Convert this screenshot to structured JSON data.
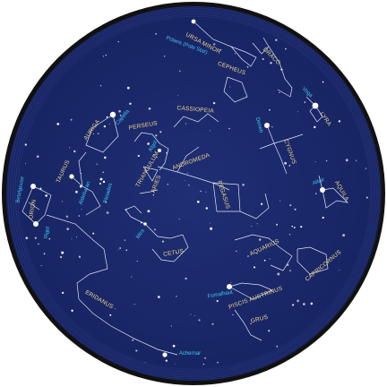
{
  "map": {
    "colors": {
      "sky": "#1c2a6b",
      "sky_edge": "#162258",
      "rim": "#111111",
      "constellation_label": "#f0d78a",
      "star_label": "#3fc7ef",
      "lines": "#dfe6f5",
      "stars": "#ffffff"
    },
    "constellations": [
      "URSA MINOR",
      "DRACO",
      "CEPHEUS",
      "CASSIOPEIA",
      "PERSEUS",
      "AURIGA",
      "TAURUS",
      "ORION",
      "ANDROMEDA",
      "TRIANGULUM",
      "ARIES",
      "PEGASUS",
      "CYGNUS",
      "LYRA",
      "AQUILA",
      "AQUARIUS",
      "CAPRICORNUS",
      "PISCIS AUSTRINUS",
      "GRUS",
      "CETUS",
      "ERIDANUS"
    ],
    "stars": [
      "Polaris (Pole Star)",
      "Capella",
      "Aldebaran",
      "Betelgeuse",
      "Rigel",
      "Algol",
      "Deneb",
      "Vega",
      "Altair",
      "Mira",
      "Fomalhaut",
      "Achernar",
      "Pleiades"
    ]
  }
}
